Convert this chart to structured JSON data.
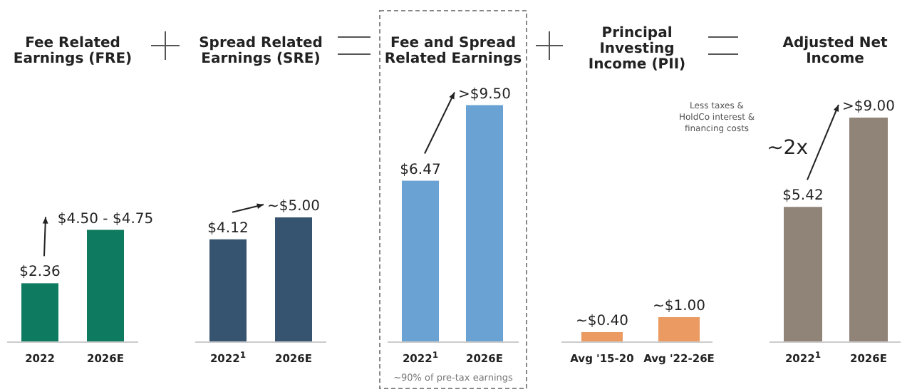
{
  "chart_data": [
    {
      "type": "bar",
      "title": "Fee Related Earnings (FRE)",
      "categories": [
        "2022",
        "2026E"
      ],
      "values": [
        2.36,
        4.5
      ],
      "value_labels": [
        "$2.36",
        "$4.50 - $4.75"
      ],
      "color": "#0e7a5f"
    },
    {
      "type": "bar",
      "title": "Spread Related Earnings (SRE)",
      "categories": [
        "2022$^{1}$",
        "2026E"
      ],
      "values": [
        4.12,
        5.0
      ],
      "value_labels": [
        "$4.12",
        "~$5.00"
      ],
      "color": "#36546f"
    },
    {
      "type": "bar",
      "title": "Fee and Spread Related Earnings",
      "categories": [
        "2022$^{1}$",
        "2026E"
      ],
      "values": [
        6.47,
        9.5
      ],
      "value_labels": [
        "$6.47",
        ">$9.50"
      ],
      "color": "#6aa2d3",
      "annotations": [
        "~90% of pre-tax earnings"
      ]
    },
    {
      "type": "bar",
      "title": "Principal Investing Income (PII)",
      "categories": [
        "Avg '15-20",
        "Avg '22-26E"
      ],
      "values": [
        0.4,
        1.0
      ],
      "value_labels": [
        "~$0.40",
        "~$1.00"
      ],
      "color": "#eb9a62"
    },
    {
      "type": "bar",
      "title": "Adjusted Net Income",
      "categories": [
        "2022$^{1}$",
        "2026E"
      ],
      "values": [
        5.42,
        9.0
      ],
      "value_labels": [
        "$5.42",
        ">$9.00"
      ],
      "color": "#908377",
      "annotations": [
        "Less taxes & HoldCo interest & financing costs",
        "~2x"
      ]
    }
  ]
}
